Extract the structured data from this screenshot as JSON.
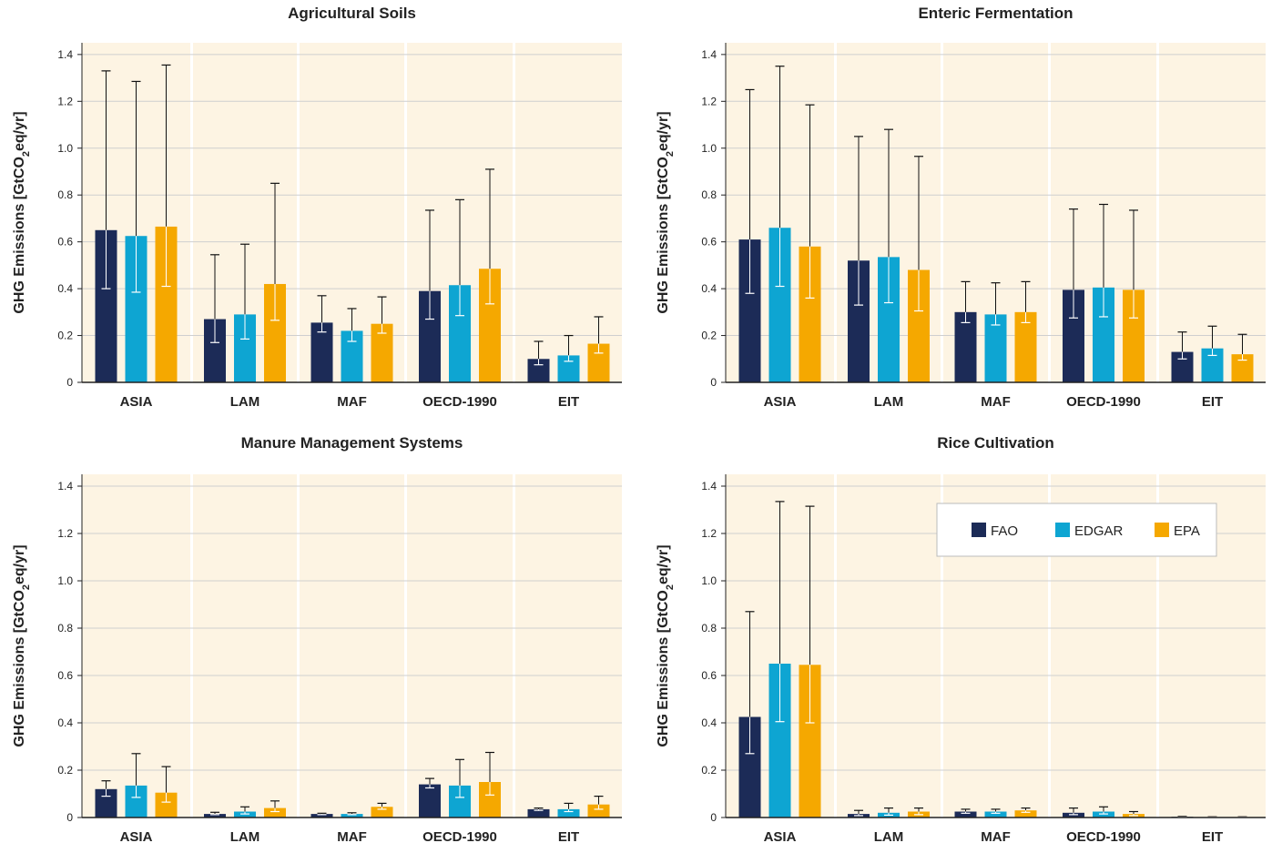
{
  "figure": {
    "ylabel_main": "GHG Emissions [GtCO",
    "ylabel_sub": "2",
    "ylabel_tail": "eq/yr]"
  },
  "legend": {
    "items": [
      {
        "name": "FAO",
        "color": "#1c2b57"
      },
      {
        "name": "EDGAR",
        "color": "#0ea5d2"
      },
      {
        "name": "EPA",
        "color": "#f5a800"
      }
    ]
  },
  "chart_data": [
    {
      "type": "bar",
      "title": "Agricultural Soils",
      "ylabel": "GHG Emissions [GtCO2eq/yr]",
      "ylim": [
        0,
        1.45
      ],
      "yticks": [
        "0",
        "0.2",
        "0.4",
        "0.6",
        "0.8",
        "1.0",
        "1.2",
        "1.4"
      ],
      "categories": [
        "ASIA",
        "LAM",
        "MAF",
        "OECD-1990",
        "EIT"
      ],
      "series": [
        {
          "name": "FAO",
          "values": [
            0.65,
            0.27,
            0.255,
            0.39,
            0.1
          ],
          "err_low": [
            0.4,
            0.17,
            0.215,
            0.27,
            0.075
          ],
          "err_high": [
            1.33,
            0.545,
            0.37,
            0.735,
            0.175
          ]
        },
        {
          "name": "EDGAR",
          "values": [
            0.625,
            0.29,
            0.22,
            0.415,
            0.115
          ],
          "err_low": [
            0.385,
            0.185,
            0.175,
            0.285,
            0.09
          ],
          "err_high": [
            1.285,
            0.59,
            0.315,
            0.78,
            0.2
          ]
        },
        {
          "name": "EPA",
          "values": [
            0.665,
            0.42,
            0.25,
            0.485,
            0.165
          ],
          "err_low": [
            0.41,
            0.265,
            0.21,
            0.335,
            0.125
          ],
          "err_high": [
            1.355,
            0.85,
            0.365,
            0.91,
            0.28
          ]
        }
      ]
    },
    {
      "type": "bar",
      "title": "Enteric Fermentation",
      "ylabel": "GHG Emissions [GtCO2eq/yr]",
      "ylim": [
        0,
        1.45
      ],
      "yticks": [
        "0",
        "0.2",
        "0.4",
        "0.6",
        "0.8",
        "1.0",
        "1.2",
        "1.4"
      ],
      "categories": [
        "ASIA",
        "LAM",
        "MAF",
        "OECD-1990",
        "EIT"
      ],
      "series": [
        {
          "name": "FAO",
          "values": [
            0.61,
            0.52,
            0.3,
            0.395,
            0.13
          ],
          "err_low": [
            0.38,
            0.33,
            0.255,
            0.275,
            0.1
          ],
          "err_high": [
            1.25,
            1.05,
            0.43,
            0.74,
            0.215
          ]
        },
        {
          "name": "EDGAR",
          "values": [
            0.66,
            0.535,
            0.29,
            0.405,
            0.145
          ],
          "err_low": [
            0.41,
            0.34,
            0.245,
            0.28,
            0.115
          ],
          "err_high": [
            1.35,
            1.08,
            0.425,
            0.76,
            0.24
          ]
        },
        {
          "name": "EPA",
          "values": [
            0.58,
            0.48,
            0.3,
            0.395,
            0.12
          ],
          "err_low": [
            0.36,
            0.305,
            0.255,
            0.275,
            0.095
          ],
          "err_high": [
            1.185,
            0.965,
            0.43,
            0.735,
            0.205
          ]
        }
      ]
    },
    {
      "type": "bar",
      "title": "Manure Management Systems",
      "ylabel": "GHG Emissions [GtCO2eq/yr]",
      "ylim": [
        0,
        1.45
      ],
      "yticks": [
        "0",
        "0.2",
        "0.4",
        "0.6",
        "0.8",
        "1.0",
        "1.2",
        "1.4"
      ],
      "categories": [
        "ASIA",
        "LAM",
        "MAF",
        "OECD-1990",
        "EIT"
      ],
      "series": [
        {
          "name": "FAO",
          "values": [
            0.12,
            0.015,
            0.015,
            0.14,
            0.035
          ],
          "err_low": [
            0.09,
            0.012,
            0.012,
            0.125,
            0.03
          ],
          "err_high": [
            0.155,
            0.022,
            0.018,
            0.165,
            0.04
          ]
        },
        {
          "name": "EDGAR",
          "values": [
            0.135,
            0.025,
            0.015,
            0.135,
            0.035
          ],
          "err_low": [
            0.085,
            0.015,
            0.012,
            0.085,
            0.025
          ],
          "err_high": [
            0.27,
            0.045,
            0.02,
            0.245,
            0.06
          ]
        },
        {
          "name": "EPA",
          "values": [
            0.105,
            0.04,
            0.045,
            0.15,
            0.055
          ],
          "err_low": [
            0.065,
            0.025,
            0.035,
            0.095,
            0.035
          ],
          "err_high": [
            0.215,
            0.07,
            0.06,
            0.275,
            0.09
          ]
        }
      ]
    },
    {
      "type": "bar",
      "title": "Rice Cultivation",
      "ylabel": "GHG Emissions [GtCO2eq/yr]",
      "ylim": [
        0,
        1.45
      ],
      "yticks": [
        "0",
        "0.2",
        "0.4",
        "0.6",
        "0.8",
        "1.0",
        "1.2",
        "1.4"
      ],
      "categories": [
        "ASIA",
        "LAM",
        "MAF",
        "OECD-1990",
        "EIT"
      ],
      "series": [
        {
          "name": "FAO",
          "values": [
            0.425,
            0.015,
            0.025,
            0.02,
            0.003
          ],
          "err_low": [
            0.27,
            0.008,
            0.018,
            0.012,
            0.002
          ],
          "err_high": [
            0.87,
            0.03,
            0.035,
            0.04,
            0.005
          ]
        },
        {
          "name": "EDGAR",
          "values": [
            0.65,
            0.02,
            0.025,
            0.025,
            0.002
          ],
          "err_low": [
            0.405,
            0.01,
            0.018,
            0.015,
            0.001
          ],
          "err_high": [
            1.335,
            0.04,
            0.035,
            0.045,
            0.003
          ]
        },
        {
          "name": "EPA",
          "values": [
            0.645,
            0.025,
            0.03,
            0.015,
            0.002
          ],
          "err_low": [
            0.4,
            0.012,
            0.022,
            0.008,
            0.001
          ],
          "err_high": [
            1.315,
            0.04,
            0.04,
            0.025,
            0.003
          ]
        }
      ],
      "legend": "top-right"
    }
  ]
}
